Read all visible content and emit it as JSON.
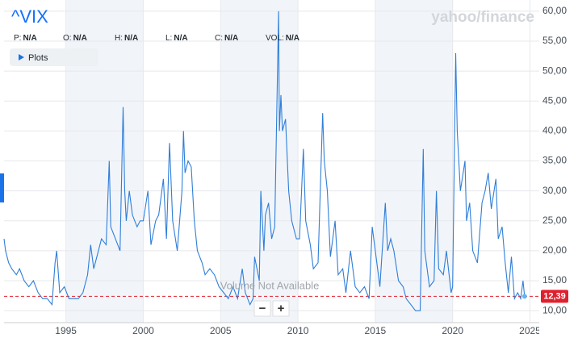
{
  "chart_data": {
    "type": "line",
    "title": "^VIX",
    "quote_fields": [
      {
        "label": "P:",
        "value": "N/A"
      },
      {
        "label": "O:",
        "value": "N/A"
      },
      {
        "label": "H:",
        "value": "N/A"
      },
      {
        "label": "L:",
        "value": "N/A"
      },
      {
        "label": "C:",
        "value": "N/A"
      },
      {
        "label": "VOL:",
        "value": "N/A"
      }
    ],
    "plots_button": "Plots",
    "watermark": "yahoo/finance",
    "volume_note": "Volume Not Available",
    "zoom_out": "−",
    "zoom_in": "+",
    "current_price": {
      "value": 12.39,
      "label": "12,39"
    },
    "xlim": [
      1991,
      2025.6
    ],
    "xticks": [
      1995,
      2000,
      2005,
      2010,
      2015,
      2020,
      2025
    ],
    "ylim": [
      8,
      61.2
    ],
    "yticks": [
      {
        "value": 10,
        "label": "10,00"
      },
      {
        "value": 15,
        "label": "15,00"
      },
      {
        "value": 20,
        "label": "20,00"
      },
      {
        "value": 25,
        "label": "25,00"
      },
      {
        "value": 30,
        "label": "30,00"
      },
      {
        "value": 35,
        "label": "35,00"
      },
      {
        "value": 40,
        "label": "40,00"
      },
      {
        "value": 45,
        "label": "45,00"
      },
      {
        "value": 50,
        "label": "50,00"
      },
      {
        "value": 55,
        "label": "55,00"
      },
      {
        "value": 60,
        "label": "60,00"
      }
    ],
    "grid": true,
    "x": [
      1991.0,
      1991.1,
      1991.3,
      1991.5,
      1991.8,
      1992.0,
      1992.3,
      1992.6,
      1992.9,
      1993.2,
      1993.5,
      1993.8,
      1994.1,
      1994.3,
      1994.4,
      1994.6,
      1994.9,
      1995.2,
      1995.5,
      1995.8,
      1996.1,
      1996.4,
      1996.6,
      1996.8,
      1997.0,
      1997.3,
      1997.6,
      1997.8,
      1997.9,
      1998.2,
      1998.5,
      1998.7,
      1998.8,
      1998.9,
      1999.1,
      1999.3,
      1999.6,
      1999.8,
      2000.0,
      2000.3,
      2000.5,
      2000.8,
      2001.0,
      2001.3,
      2001.5,
      2001.7,
      2001.9,
      2002.2,
      2002.5,
      2002.6,
      2002.7,
      2002.9,
      2003.1,
      2003.3,
      2003.5,
      2003.8,
      2004.0,
      2004.3,
      2004.6,
      2004.9,
      2005.2,
      2005.5,
      2005.8,
      2006.1,
      2006.4,
      2006.6,
      2006.9,
      2007.1,
      2007.2,
      2007.5,
      2007.6,
      2007.8,
      2007.9,
      2008.1,
      2008.3,
      2008.5,
      2008.75,
      2008.8,
      2008.9,
      2009.0,
      2009.2,
      2009.4,
      2009.6,
      2009.9,
      2010.1,
      2010.35,
      2010.5,
      2010.8,
      2011.0,
      2011.3,
      2011.6,
      2011.7,
      2011.9,
      2012.1,
      2012.4,
      2012.6,
      2012.9,
      2013.1,
      2013.4,
      2013.7,
      2014.0,
      2014.3,
      2014.6,
      2014.8,
      2015.0,
      2015.3,
      2015.65,
      2015.8,
      2016.0,
      2016.2,
      2016.5,
      2016.8,
      2017.0,
      2017.3,
      2017.6,
      2017.9,
      2018.1,
      2018.2,
      2018.5,
      2018.8,
      2018.95,
      2019.1,
      2019.4,
      2019.6,
      2019.9,
      2020.0,
      2020.2,
      2020.3,
      2020.5,
      2020.8,
      2020.9,
      2021.1,
      2021.3,
      2021.6,
      2021.9,
      2022.1,
      2022.3,
      2022.5,
      2022.8,
      2022.95,
      2023.2,
      2023.4,
      2023.6,
      2023.8,
      2024.0,
      2024.2,
      2024.4,
      2024.55,
      2024.65
    ],
    "series": [
      {
        "name": "^VIX",
        "color": "#2f7ed8",
        "values": [
          22,
          20,
          18,
          17,
          16,
          17,
          15,
          14,
          15,
          13,
          12,
          12,
          11,
          18,
          20,
          13,
          14,
          12,
          12,
          12,
          13,
          16,
          21,
          17,
          19,
          22,
          21,
          35,
          24,
          22,
          20,
          44,
          30,
          25,
          30,
          26,
          24,
          25,
          25,
          30,
          21,
          25,
          26,
          32,
          22,
          38,
          25,
          20,
          30,
          40,
          33,
          35,
          34,
          25,
          20,
          18,
          16,
          17,
          16,
          14,
          13,
          12,
          14,
          12,
          17,
          13,
          11,
          12,
          19,
          15,
          30,
          20,
          26,
          28,
          22,
          24,
          60,
          40,
          46,
          40,
          42,
          30,
          25,
          22,
          22,
          37,
          25,
          21,
          17,
          18,
          43,
          35,
          30,
          19,
          25,
          16,
          17,
          13,
          20,
          14,
          13,
          14,
          12,
          24,
          20,
          14,
          28,
          20,
          22,
          20,
          15,
          14,
          12,
          11,
          10,
          10,
          37,
          20,
          14,
          15,
          30,
          17,
          16,
          20,
          13,
          14,
          53,
          40,
          30,
          35,
          25,
          28,
          20,
          18,
          28,
          30,
          33,
          27,
          32,
          22,
          24,
          18,
          13,
          19,
          12,
          13,
          12,
          15,
          12.4
        ]
      }
    ]
  }
}
